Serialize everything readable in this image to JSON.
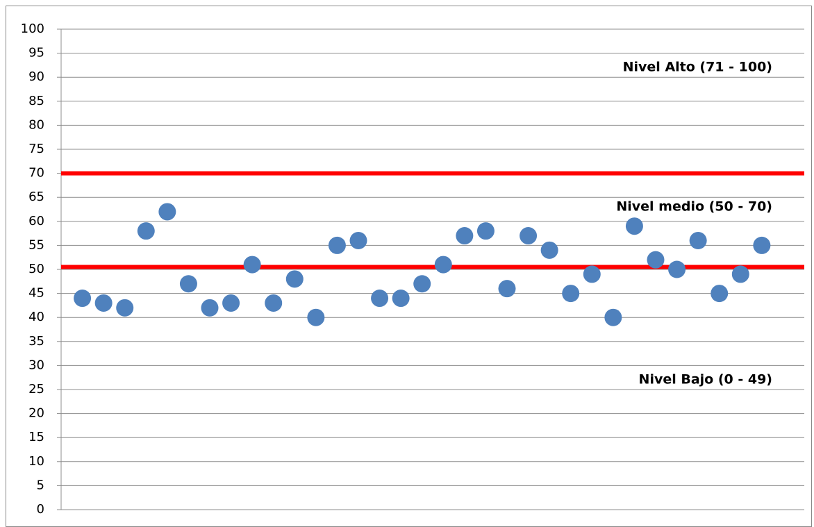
{
  "chart_data": {
    "type": "scatter",
    "annotations": [
      "Nivel Alto (71 - 100)",
      "Nivel medio (50 - 70)",
      "Nivel Bajo (0 - 49)"
    ],
    "x": [
      1,
      2,
      3,
      4,
      5,
      6,
      7,
      8,
      9,
      10,
      11,
      12,
      13,
      14,
      15,
      16,
      17,
      18,
      19,
      20,
      21,
      22,
      23,
      24,
      25,
      26,
      27,
      28,
      29,
      30,
      31,
      32,
      33
    ],
    "series": [
      {
        "color": "#4f81bd",
        "values": [
          44,
          43,
          42,
          58,
          62,
          47,
          42,
          43,
          51,
          43,
          48,
          40,
          55,
          56,
          44,
          44,
          47,
          51,
          57,
          58,
          46,
          57,
          54,
          45,
          49,
          40,
          59,
          52,
          50,
          56,
          45,
          49,
          55
        ]
      }
    ],
    "reference_lines": [
      {
        "y": 70,
        "color": "#ff0000"
      },
      {
        "y": 50.5,
        "color": "#ff0000"
      }
    ],
    "xlim": [
      0,
      35
    ],
    "ylim": [
      0,
      100
    ],
    "yticks": [
      0,
      5,
      10,
      15,
      20,
      25,
      30,
      35,
      40,
      45,
      50,
      55,
      60,
      65,
      70,
      75,
      80,
      85,
      90,
      95,
      100
    ],
    "grid": true
  }
}
